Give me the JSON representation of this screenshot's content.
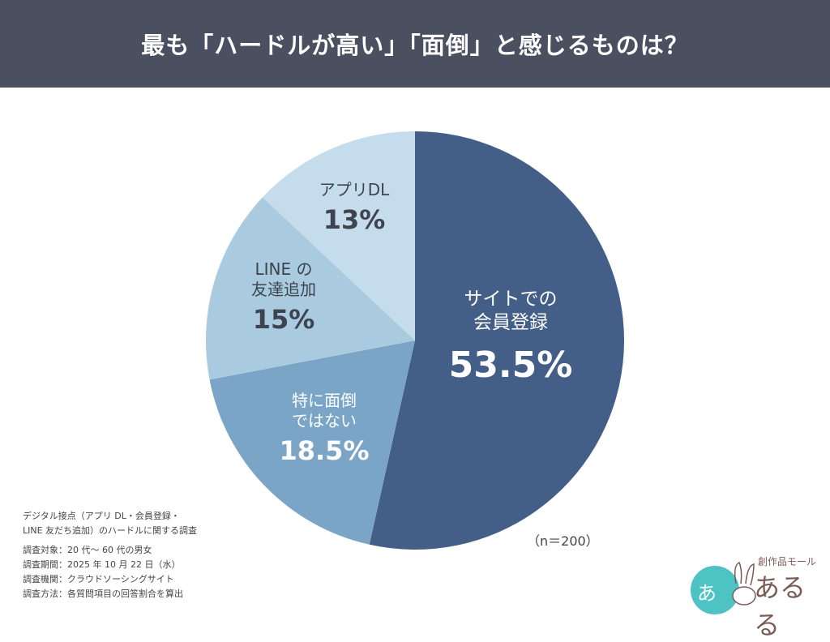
{
  "header": {
    "title": "最も「ハードルが高い」「面倒」と感じるものは？"
  },
  "chart_data": {
    "type": "pie",
    "title": "最も「ハードルが高い」「面倒」と感じるものは？",
    "start": "top, clockwise",
    "slices": [
      {
        "label_lines": [
          "サイトでの",
          "会員登録"
        ],
        "value": 53.5,
        "pct_label": "53.5%",
        "color": "#445f87",
        "text_color": "#ffffff"
      },
      {
        "label_lines": [
          "特に面倒",
          "ではない"
        ],
        "value": 18.5,
        "pct_label": "18.5%",
        "color": "#7aa5c6",
        "text_color": "#ffffff"
      },
      {
        "label_lines": [
          "LINE の",
          "友達追加"
        ],
        "value": 15,
        "pct_label": "15%",
        "color": "#aacbdf",
        "text_color": "#3d4450"
      },
      {
        "label_lines": [
          "アプリDL"
        ],
        "value": 13,
        "pct_label": "13%",
        "color": "#c5dcec",
        "text_color": "#3d4450"
      }
    ],
    "sample_size": "（n＝200）"
  },
  "notes": {
    "survey_title": [
      "デジタル接点（アプリ DL・会員登録・",
      "LINE 友だち追加）のハードルに関する調査"
    ],
    "lines": [
      "調査対象：20 代～ 60 代の男女",
      "調査期間：2025 年 10 月 22 日（水）",
      "調査機関：クラウドソーシングサイト",
      "調査方法：各質問項目の回答割合を算出"
    ]
  },
  "logo": {
    "tagline": "創作品モール",
    "name": "あるる"
  }
}
